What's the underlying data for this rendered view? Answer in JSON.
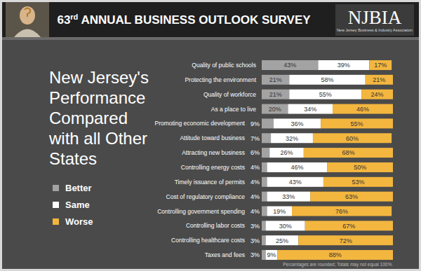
{
  "header": {
    "title": "63rd ANNUAL BUSINESS OUTLOOK SURVEY",
    "logo": "NJBIA",
    "logo_subtitle": "New Jersey Business & Industry Association"
  },
  "chart_data": {
    "type": "bar",
    "orientation": "horizontal",
    "stacked": true,
    "data_labels": true,
    "tick_labels": false,
    "legend": "left",
    "title": "New Jersey's Performance Compared with all Other States",
    "xlim": [
      0,
      100
    ],
    "categories": [
      "Quality of public schools",
      "Protecting the environment",
      "Quality of workforce",
      "As a place to live",
      "Promoting economic development",
      "Attitude toward business",
      "Attracting new business",
      "Controlling energy costs",
      "Timely issuance of permits",
      "Cost of regulatory compliance",
      "Controlling government spending",
      "Controlling labor costs",
      "Controlling healthcare costs",
      "Taxes and fees"
    ],
    "series": [
      {
        "name": "Better",
        "color": "#a3a3a3",
        "values": [
          43,
          21,
          21,
          20,
          9,
          7,
          6,
          4,
          4,
          4,
          4,
          3,
          3,
          3
        ],
        "value_labels": [
          "43%",
          "21%",
          "21%",
          "20%",
          "9%",
          "7%",
          "6%",
          "4%",
          "4%",
          "4%",
          "4%",
          "3%",
          "3%",
          "3%"
        ]
      },
      {
        "name": "Same",
        "color": "#ffffff",
        "values": [
          39,
          58,
          55,
          34,
          36,
          32,
          26,
          46,
          43,
          33,
          19,
          30,
          25,
          9
        ],
        "value_labels": [
          "39%",
          "58%",
          "55%",
          "34%",
          "36%",
          "32%",
          "26%",
          "46%",
          "43%",
          "33%",
          "19%",
          "30%",
          "25%",
          "9%"
        ]
      },
      {
        "name": "Worse",
        "color": "#f3b63f",
        "values": [
          17,
          21,
          24,
          46,
          55,
          60,
          68,
          50,
          53,
          63,
          76,
          67,
          72,
          88
        ],
        "value_labels": [
          "17%",
          "21%",
          "24%",
          "46%",
          "55%",
          "60%",
          "68%",
          "50%",
          "53%",
          "63%",
          "76%",
          "67%",
          "72%",
          "88%"
        ]
      }
    ]
  },
  "footnote": "Percentages are rounded; Totals may not equal 100%."
}
